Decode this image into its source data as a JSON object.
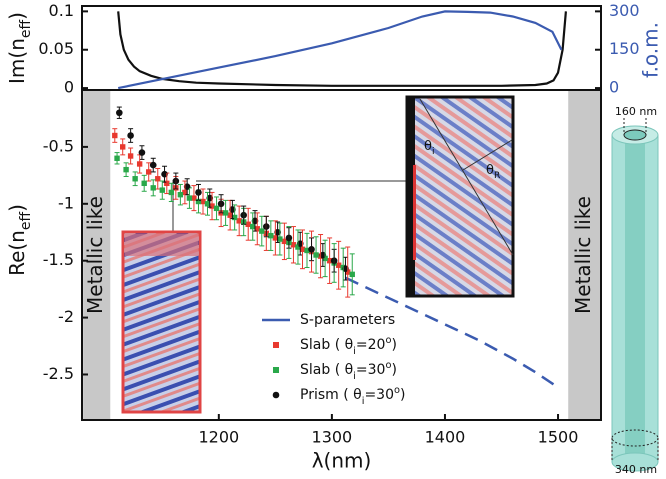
{
  "chart_data": [
    {
      "type": "line",
      "y_label": [
        {
          "t": "Im(n"
        },
        {
          "sub": "eff"
        },
        {
          "t": ")"
        }
      ],
      "y2_label": "f.o.m.",
      "xlim": [
        1079,
        1538
      ],
      "ylim": [
        -0.0025,
        0.107
      ],
      "yticks": [
        0,
        0.05,
        0.1
      ],
      "y2lim": [
        -7.5,
        321
      ],
      "y2ticks": [
        0,
        150,
        300
      ],
      "y2_color": "#3b5bb0",
      "series": [
        {
          "color": "#111111",
          "x": [
            1111,
            1113,
            1116,
            1120,
            1125,
            1130,
            1140,
            1150,
            1165,
            1180,
            1200,
            1250,
            1300,
            1350,
            1400,
            1450,
            1480,
            1490,
            1496,
            1500,
            1504,
            1507
          ],
          "values": [
            0.1,
            0.07,
            0.05,
            0.037,
            0.028,
            0.022,
            0.016,
            0.012,
            0.009,
            0.007,
            0.006,
            0.004,
            0.003,
            0.003,
            0.003,
            0.003,
            0.004,
            0.006,
            0.01,
            0.02,
            0.05,
            0.1
          ]
        },
        {
          "color": "#3b5bb0",
          "axis": "y2",
          "x": [
            1111,
            1150,
            1200,
            1250,
            1300,
            1350,
            1380,
            1400,
            1420,
            1440,
            1460,
            1480,
            1495,
            1503
          ],
          "values": [
            0,
            35,
            80,
            125,
            175,
            235,
            280,
            300,
            298,
            295,
            280,
            255,
            220,
            150
          ]
        }
      ]
    },
    {
      "type": "scatter",
      "y_label": [
        {
          "t": "Re(n"
        },
        {
          "sub": "eff"
        },
        {
          "t": ")"
        }
      ],
      "x_label": "λ(nm)",
      "xlim": [
        1079,
        1538
      ],
      "xticks": [
        1200,
        1300,
        1400,
        1500
      ],
      "ylim": [
        -2.9,
        0
      ],
      "yticks": [
        -2.5,
        -2,
        -1.5,
        -1,
        -0.5
      ],
      "shaded_regions": [
        {
          "x": [
            1080,
            1104
          ],
          "label": "Metallic like"
        },
        {
          "x": [
            1509,
            1538
          ],
          "label": "Metallic like"
        }
      ],
      "series": [
        {
          "name": [
            {
              "t": "S-parameters"
            }
          ],
          "color": "#3b5bb0",
          "marker": "none",
          "dash": true,
          "x": [
            1312,
            1340,
            1370,
            1400,
            1430,
            1460,
            1480,
            1498
          ],
          "values": [
            -1.65,
            -1.78,
            -1.92,
            -2.06,
            -2.2,
            -2.36,
            -2.48,
            -2.6
          ]
        },
        {
          "name": [
            {
              "t": "Slab ( θ"
            },
            {
              "sub": "i"
            },
            {
              "t": "=20"
            },
            {
              "sup": "o"
            },
            {
              "t": ")"
            }
          ],
          "color": "#e8392f",
          "marker": "square",
          "x": [
            1108,
            1115,
            1122,
            1130,
            1138,
            1146,
            1154,
            1162,
            1170,
            1178,
            1186,
            1194,
            1202,
            1210,
            1218,
            1226,
            1234,
            1242,
            1250,
            1258,
            1266,
            1274,
            1282,
            1290,
            1298,
            1306,
            1314
          ],
          "values": [
            -0.4,
            -0.5,
            -0.58,
            -0.65,
            -0.72,
            -0.78,
            -0.82,
            -0.86,
            -0.9,
            -0.95,
            -0.98,
            -1.02,
            -1.08,
            -1.1,
            -1.15,
            -1.18,
            -1.22,
            -1.26,
            -1.3,
            -1.33,
            -1.36,
            -1.4,
            -1.42,
            -1.46,
            -1.5,
            -1.54,
            -1.6
          ],
          "errors": [
            0.06,
            0.07,
            0.07,
            0.08,
            0.08,
            0.09,
            0.09,
            0.1,
            0.1,
            0.11,
            0.11,
            0.12,
            0.12,
            0.13,
            0.13,
            0.14,
            0.14,
            0.15,
            0.15,
            0.16,
            0.16,
            0.17,
            0.18,
            0.19,
            0.2,
            0.21,
            0.22
          ]
        },
        {
          "name": [
            {
              "t": "Slab ( θ"
            },
            {
              "sub": "i"
            },
            {
              "t": "=30"
            },
            {
              "sup": "o"
            },
            {
              "t": ")"
            }
          ],
          "color": "#2aa84a",
          "marker": "square",
          "x": [
            1110,
            1118,
            1126,
            1134,
            1142,
            1150,
            1158,
            1166,
            1174,
            1182,
            1190,
            1198,
            1206,
            1214,
            1222,
            1230,
            1238,
            1246,
            1254,
            1262,
            1270,
            1278,
            1286,
            1294,
            1302,
            1310,
            1318
          ],
          "values": [
            -0.6,
            -0.7,
            -0.78,
            -0.82,
            -0.86,
            -0.88,
            -0.9,
            -0.92,
            -0.95,
            -0.98,
            -1.0,
            -1.04,
            -1.08,
            -1.12,
            -1.16,
            -1.2,
            -1.24,
            -1.28,
            -1.31,
            -1.34,
            -1.38,
            -1.41,
            -1.45,
            -1.48,
            -1.52,
            -1.56,
            -1.62
          ],
          "errors": [
            0.05,
            0.06,
            0.06,
            0.07,
            0.07,
            0.08,
            0.08,
            0.09,
            0.09,
            0.1,
            0.1,
            0.1,
            0.11,
            0.11,
            0.12,
            0.12,
            0.13,
            0.13,
            0.14,
            0.14,
            0.15,
            0.15,
            0.16,
            0.16,
            0.17,
            0.17,
            0.18
          ]
        },
        {
          "name": [
            {
              "t": "Prism ( θ"
            },
            {
              "sub": "i"
            },
            {
              "t": "=30"
            },
            {
              "sup": "o"
            },
            {
              "t": ")"
            }
          ],
          "color": "#111111",
          "marker": "circle",
          "x": [
            1112,
            1122,
            1132,
            1142,
            1152,
            1162,
            1172,
            1182,
            1192,
            1202,
            1212,
            1222,
            1232,
            1242,
            1252,
            1262,
            1272,
            1282,
            1292,
            1302,
            1312
          ],
          "values": [
            -0.2,
            -0.4,
            -0.55,
            -0.66,
            -0.74,
            -0.8,
            -0.85,
            -0.9,
            -0.95,
            -1.0,
            -1.05,
            -1.1,
            -1.15,
            -1.2,
            -1.25,
            -1.3,
            -1.35,
            -1.4,
            -1.45,
            -1.5,
            -1.57
          ],
          "errors": [
            0.05,
            0.06,
            0.06,
            0.06,
            0.07,
            0.07,
            0.07,
            0.07,
            0.08,
            0.08,
            0.08,
            0.08,
            0.09,
            0.09,
            0.09,
            0.09,
            0.1,
            0.1,
            0.1,
            0.1,
            0.1
          ]
        }
      ]
    }
  ],
  "inset": {
    "theta_i": [
      {
        "t": "θ"
      },
      {
        "sub": "i"
      }
    ],
    "theta_r": [
      {
        "t": "θ"
      },
      {
        "sub": "R"
      }
    ]
  },
  "diagram": {
    "inner_diameter": "160 nm",
    "outer_diameter": "340 nm"
  }
}
